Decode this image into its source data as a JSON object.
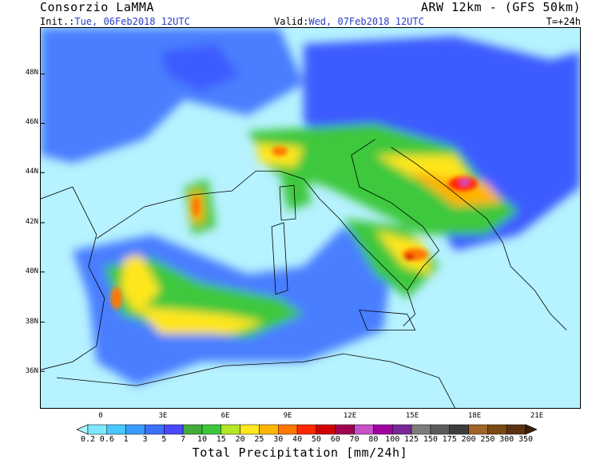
{
  "header": {
    "left_title": "Consorzio LaMMA",
    "right_title": "ARW 12km - (GFS 50km)",
    "init_label": "Init.:",
    "init_value": "Tue, 06Feb2018 12UTC",
    "valid_label": "Valid:",
    "valid_value": "Wed, 07Feb2018 12UTC",
    "lead_time": "T=+24h"
  },
  "map": {
    "lat_labels": [
      "48N",
      "46N",
      "44N",
      "42N",
      "40N",
      "38N",
      "36N"
    ],
    "lon_labels": [
      "0",
      "3E",
      "6E",
      "9E",
      "12E",
      "15E",
      "18E",
      "21E"
    ]
  },
  "colorbar": {
    "title": "Total Precipitation [mm/24h]",
    "levels": [
      "0.2",
      "0.6",
      "1",
      "3",
      "5",
      "7",
      "10",
      "15",
      "20",
      "25",
      "30",
      "40",
      "50",
      "60",
      "70",
      "80",
      "100",
      "125",
      "150",
      "175",
      "200",
      "250",
      "300",
      "350"
    ],
    "colors": [
      "#aef6ff",
      "#7ee8ff",
      "#48c8ff",
      "#3a9cff",
      "#3c70ff",
      "#4848ff",
      "#44aa3c",
      "#3cc83c",
      "#b4e628",
      "#ffe61e",
      "#ffb400",
      "#ff7800",
      "#ff2800",
      "#d20000",
      "#a00050",
      "#c850c8",
      "#a000a0",
      "#782896",
      "#7c7c7c",
      "#5a5a5a",
      "#3c3c3c",
      "#a06428",
      "#7a4a14",
      "#5a3212",
      "#3c2008"
    ]
  }
}
